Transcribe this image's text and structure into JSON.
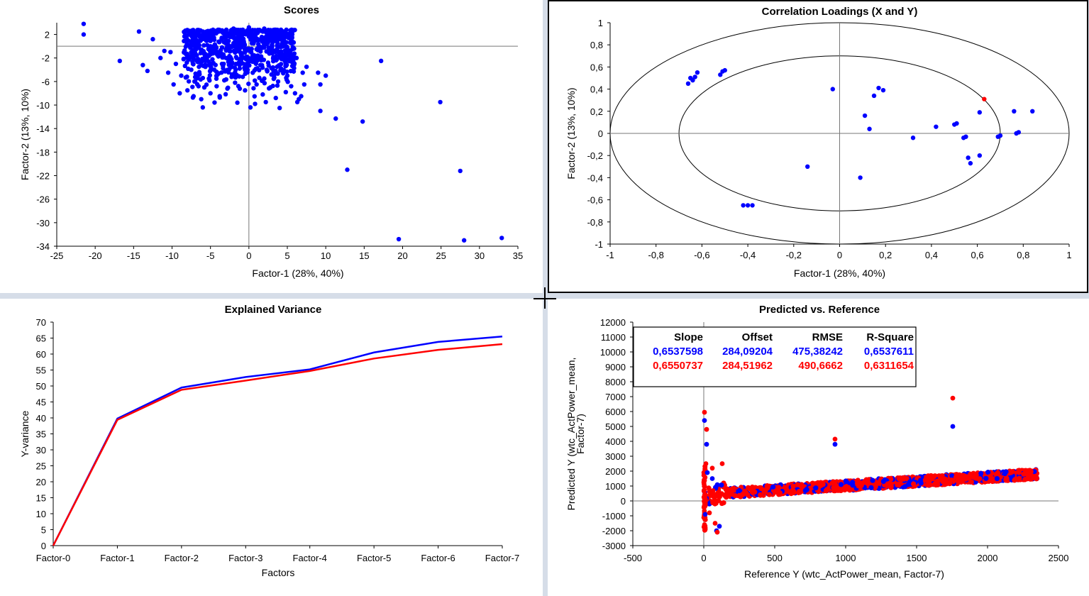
{
  "colors": {
    "blue": "#0000ff",
    "red": "#ff0000",
    "axis": "#000000",
    "panel": "#ffffff",
    "background": "#d6dde8"
  },
  "chart_data": [
    {
      "id": "scores",
      "type": "scatter",
      "title": "Scores",
      "xlabel": "Factor-1 (28%, 40%)",
      "ylabel": "Factor-2 (13%, 10%)",
      "xlim": [
        -25,
        35
      ],
      "ylim": [
        -34,
        4
      ],
      "xticks": [
        -25,
        -20,
        -15,
        -10,
        -5,
        0,
        5,
        10,
        15,
        20,
        25,
        30,
        35
      ],
      "yticks": [
        2,
        -2,
        -6,
        -10,
        -14,
        -18,
        -22,
        -26,
        -30,
        -34
      ],
      "grid": false,
      "crosshair": [
        0,
        0
      ],
      "points": [
        [
          -21.5,
          3.8
        ],
        [
          -21.5,
          2.0
        ],
        [
          -16.8,
          -2.5
        ],
        [
          -14.3,
          2.5
        ],
        [
          -13.8,
          -3.2
        ],
        [
          -13.2,
          -4.2
        ],
        [
          -12.5,
          1.2
        ],
        [
          -11.5,
          -2.0
        ],
        [
          -11.0,
          -0.8
        ],
        [
          -10.5,
          -4.5
        ],
        [
          -10.2,
          -1.0
        ],
        [
          -9.8,
          -6.5
        ],
        [
          -9.5,
          -3.0
        ],
        [
          -9.0,
          -8.0
        ],
        [
          -8.8,
          -5.0
        ],
        [
          -8.5,
          -2.2
        ],
        [
          -8.0,
          -7.5
        ],
        [
          -7.8,
          2.5
        ],
        [
          -7.5,
          -4.0
        ],
        [
          -7.2,
          -8.5
        ],
        [
          -7.0,
          -6.0
        ],
        [
          -6.8,
          1.0
        ],
        [
          -6.5,
          -3.5
        ],
        [
          -6.2,
          -9.0
        ],
        [
          -6.0,
          -10.4
        ],
        [
          -5.8,
          -7.0
        ],
        [
          -5.5,
          -2.0
        ],
        [
          -5.2,
          -5.5
        ],
        [
          -5.0,
          -8.0
        ],
        [
          -4.8,
          1.5
        ],
        [
          -4.5,
          -4.0
        ],
        [
          -4.2,
          -6.8
        ],
        [
          -4.0,
          -1.0
        ],
        [
          -3.8,
          -8.5
        ],
        [
          -3.5,
          -3.0
        ],
        [
          -3.2,
          -5.8
        ],
        [
          -3.0,
          2.2
        ],
        [
          -2.8,
          -7.2
        ],
        [
          -2.5,
          -2.5
        ],
        [
          -2.2,
          -4.8
        ],
        [
          -2.0,
          0.5
        ],
        [
          -1.8,
          -6.2
        ],
        [
          -1.5,
          -9.6
        ],
        [
          -1.2,
          -3.8
        ],
        [
          -1.0,
          1.8
        ],
        [
          -0.8,
          -5.2
        ],
        [
          -0.5,
          -7.5
        ],
        [
          -0.2,
          -2.0
        ],
        [
          0.2,
          -10.4
        ],
        [
          0.5,
          -4.5
        ],
        [
          0.8,
          -9.8
        ],
        [
          1.0,
          -6.5
        ],
        [
          1.2,
          1.0
        ],
        [
          1.5,
          -3.2
        ],
        [
          1.8,
          -8.2
        ],
        [
          2.0,
          -5.5
        ],
        [
          2.2,
          -9.5
        ],
        [
          2.5,
          -2.8
        ],
        [
          2.8,
          -7.0
        ],
        [
          3.0,
          0.2
        ],
        [
          3.2,
          -4.2
        ],
        [
          3.5,
          -8.8
        ],
        [
          3.8,
          -6.0
        ],
        [
          4.0,
          -1.5
        ],
        [
          4.2,
          -3.8
        ],
        [
          4.5,
          2.5
        ],
        [
          4.8,
          -7.8
        ],
        [
          5.0,
          -5.0
        ],
        [
          5.2,
          -1.0
        ],
        [
          5.5,
          -6.8
        ],
        [
          5.8,
          -3.0
        ],
        [
          6.0,
          -8.0
        ],
        [
          6.2,
          -2.0
        ],
        [
          6.5,
          -9.0
        ],
        [
          6.8,
          -8.5
        ],
        [
          7.0,
          -4.5
        ],
        [
          7.5,
          -3.5
        ],
        [
          7.2,
          -6.5
        ],
        [
          6.3,
          -9.5
        ],
        [
          4.0,
          -10.5
        ],
        [
          -6.5,
          2.0
        ],
        [
          -5.5,
          2.5
        ],
        [
          -4.0,
          2.8
        ],
        [
          -2.0,
          3.0
        ],
        [
          0.0,
          3.2
        ],
        [
          2.0,
          3.0
        ],
        [
          3.5,
          2.8
        ],
        [
          5.0,
          2.0
        ],
        [
          -7.0,
          0.0
        ],
        [
          -6.0,
          -1.0
        ],
        [
          -5.0,
          0.0
        ],
        [
          -3.0,
          -0.5
        ],
        [
          -1.0,
          -1.5
        ],
        [
          1.0,
          -0.5
        ],
        [
          3.0,
          -1.0
        ],
        [
          5.5,
          0.5
        ],
        [
          9.0,
          -4.5
        ],
        [
          9.3,
          -6.5
        ],
        [
          9.3,
          -11.0
        ],
        [
          10.0,
          -5.0
        ],
        [
          11.3,
          -12.3
        ],
        [
          14.8,
          -12.8
        ],
        [
          12.8,
          -21.0
        ],
        [
          17.2,
          -2.5
        ],
        [
          24.9,
          -9.5
        ],
        [
          27.5,
          -21.2
        ],
        [
          19.5,
          -32.8
        ],
        [
          28.0,
          -33.0
        ],
        [
          32.9,
          -32.6
        ]
      ]
    },
    {
      "id": "loadings",
      "type": "scatter",
      "title": "Correlation Loadings (X and Y)",
      "xlabel": "Factor-1 (28%, 40%)",
      "ylabel": "Factor-2 (13%, 10%)",
      "xlim": [
        -1,
        1
      ],
      "ylim": [
        -1,
        1
      ],
      "xticks": [
        "-1",
        "-0,8",
        "-0,6",
        "-0,4",
        "-0,2",
        "0",
        "0,2",
        "0,4",
        "0,6",
        "0,8",
        "1"
      ],
      "yticks": [
        "1",
        "0,8",
        "0,6",
        "0,4",
        "0,2",
        "0",
        "-0,2",
        "-0,4",
        "-0,6",
        "-0,8",
        "-1"
      ],
      "ellipses": [
        1.0,
        0.7
      ],
      "grid": false,
      "crosshair": [
        0,
        0
      ],
      "points_x_variables": [
        [
          -0.66,
          0.45
        ],
        [
          -0.65,
          0.5
        ],
        [
          -0.64,
          0.48
        ],
        [
          -0.63,
          0.51
        ],
        [
          -0.62,
          0.55
        ],
        [
          -0.52,
          0.53
        ],
        [
          -0.51,
          0.56
        ],
        [
          -0.5,
          0.57
        ],
        [
          -0.42,
          -0.65
        ],
        [
          -0.4,
          -0.65
        ],
        [
          -0.38,
          -0.65
        ],
        [
          -0.14,
          -0.3
        ],
        [
          -0.03,
          0.4
        ],
        [
          0.09,
          -0.4
        ],
        [
          0.11,
          0.16
        ],
        [
          0.13,
          0.04
        ],
        [
          0.15,
          0.34
        ],
        [
          0.17,
          0.41
        ],
        [
          0.19,
          0.39
        ],
        [
          0.32,
          -0.04
        ],
        [
          0.42,
          0.06
        ],
        [
          0.5,
          0.08
        ],
        [
          0.51,
          0.09
        ],
        [
          0.54,
          -0.04
        ],
        [
          0.55,
          -0.03
        ],
        [
          0.56,
          -0.22
        ],
        [
          0.57,
          -0.27
        ],
        [
          0.61,
          0.19
        ],
        [
          0.61,
          -0.2
        ],
        [
          0.69,
          -0.03
        ],
        [
          0.7,
          -0.02
        ],
        [
          0.76,
          0.2
        ],
        [
          0.77,
          0.0
        ],
        [
          0.78,
          0.01
        ],
        [
          0.84,
          0.2
        ]
      ],
      "points_y_variables": [
        [
          0.63,
          0.31
        ]
      ]
    },
    {
      "id": "variance",
      "type": "line",
      "title": "Explained Variance",
      "xlabel": "Factors",
      "ylabel": "Y-variance",
      "categories": [
        "Factor-0",
        "Factor-1",
        "Factor-2",
        "Factor-3",
        "Factor-4",
        "Factor-5",
        "Factor-6",
        "Factor-7"
      ],
      "ylim": [
        0,
        70
      ],
      "yticks": [
        0,
        5,
        10,
        15,
        20,
        25,
        30,
        35,
        40,
        45,
        50,
        55,
        60,
        65,
        70
      ],
      "series": [
        {
          "color": "blue",
          "values": [
            0,
            39.8,
            49.5,
            52.8,
            55.2,
            60.5,
            63.8,
            65.5
          ]
        },
        {
          "color": "red",
          "values": [
            0,
            39.4,
            48.8,
            51.7,
            54.7,
            58.6,
            61.3,
            63.1
          ]
        }
      ]
    },
    {
      "id": "predref",
      "type": "scatter",
      "title": "Predicted vs. Reference",
      "xlabel": "Reference Y (wtc_ActPower_mean, Factor-7)",
      "ylabel": "Predicted Y (wtc_ActPower_mean, Factor-7)",
      "xlim": [
        -500,
        2500
      ],
      "ylim": [
        -3000,
        12000
      ],
      "xticks": [
        -500,
        0,
        500,
        1000,
        1500,
        2000,
        2500
      ],
      "yticks": [
        12000,
        11000,
        10000,
        9000,
        8000,
        7000,
        6000,
        5000,
        4000,
        3000,
        2000,
        1000,
        0,
        -1000,
        -2000,
        -3000
      ],
      "crosshair": [
        0,
        0
      ],
      "stats": {
        "headers": [
          "Slope",
          "Offset",
          "RMSE",
          "R-Square"
        ],
        "rows": [
          {
            "color": "blue",
            "values": [
              "0,6537598",
              "284,09204",
              "475,38242",
              "0,6537611"
            ]
          },
          {
            "color": "red",
            "values": [
              "0,6550737",
              "284,51962",
              "490,6662",
              "0,6311654"
            ]
          }
        ]
      },
      "band": {
        "x": [
          0,
          2350
        ],
        "center_y": [
          450,
          1800
        ],
        "spread": 650
      },
      "outliers_blue": [
        [
          5,
          5400
        ],
        [
          20,
          3800
        ],
        [
          25,
          1900
        ],
        [
          60,
          1500
        ],
        [
          90,
          -2000
        ],
        [
          110,
          -1700
        ],
        [
          925,
          3800
        ],
        [
          1755,
          5000
        ],
        [
          10,
          -900
        ]
      ],
      "outliers_red": [
        [
          5,
          5950
        ],
        [
          20,
          4800
        ],
        [
          15,
          2500
        ],
        [
          60,
          2200
        ],
        [
          95,
          -2100
        ],
        [
          80,
          -1500
        ],
        [
          925,
          4150
        ],
        [
          1755,
          6900
        ],
        [
          130,
          2500
        ],
        [
          40,
          -800
        ]
      ]
    }
  ]
}
